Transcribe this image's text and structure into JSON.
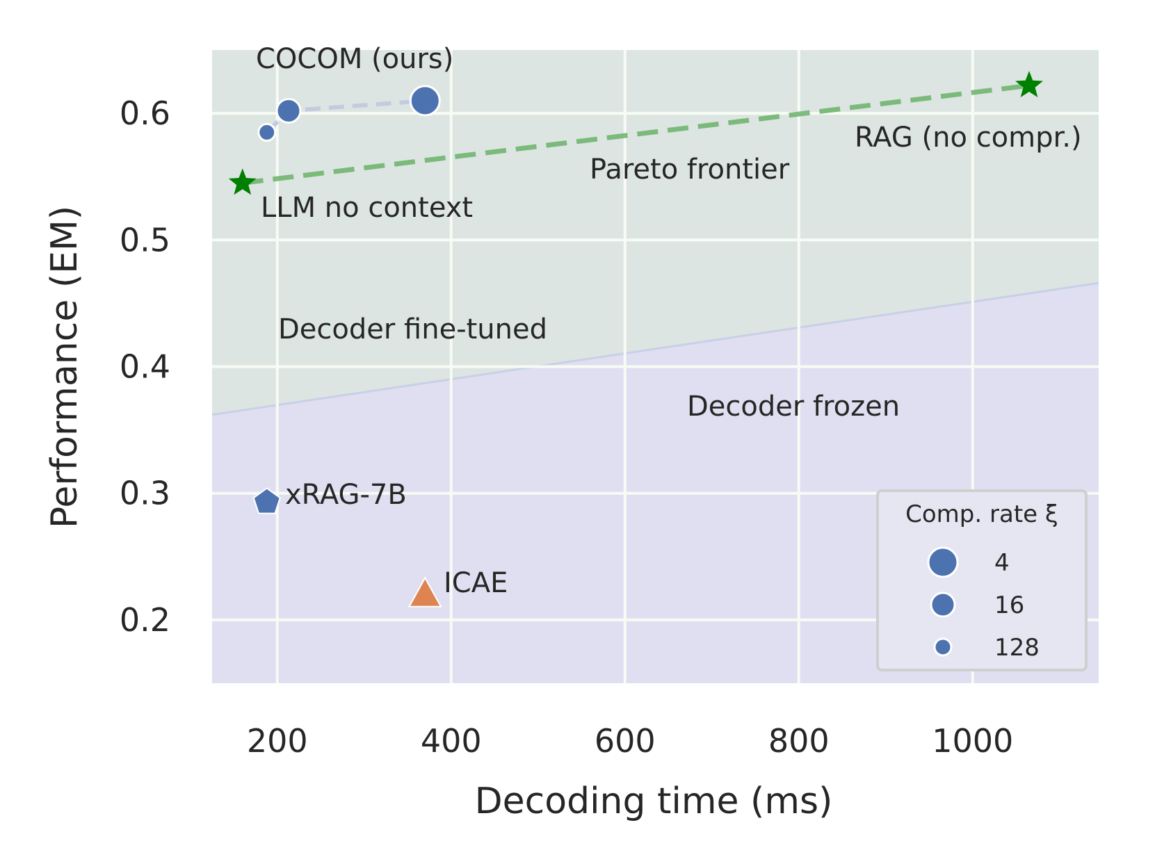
{
  "chart_data": {
    "type": "scatter",
    "title": "",
    "xlabel": "Decoding time (ms)",
    "ylabel": "Performance (EM)",
    "xlim": [
      125,
      1145
    ],
    "ylim": [
      0.15,
      0.65
    ],
    "x_ticks": [
      "200",
      "400",
      "600",
      "800",
      "1000"
    ],
    "y_ticks": [
      "0.2",
      "0.3",
      "0.4",
      "0.5",
      "0.6"
    ],
    "grid": true,
    "regions": [
      {
        "name": "Decoder fine-tuned",
        "color": "#dde5e3",
        "label_color": "#6ab36a"
      },
      {
        "name": "Decoder frozen",
        "color": "#dfdff1",
        "label_color": "#8080ea"
      }
    ],
    "region_boundary": {
      "x": [
        125,
        1145
      ],
      "y": [
        0.362,
        0.466
      ]
    },
    "series": [
      {
        "name": "COCOM (ours)",
        "marker": "circle",
        "color": "#4c72b0",
        "points": [
          {
            "x": 188,
            "y": 0.585,
            "rate": 128
          },
          {
            "x": 213,
            "y": 0.602,
            "rate": 16
          },
          {
            "x": 370,
            "y": 0.61,
            "rate": 4
          }
        ]
      },
      {
        "name": "xRAG-7B",
        "marker": "pentagon",
        "color": "#4c72b0",
        "points": [
          {
            "x": 188,
            "y": 0.293
          }
        ]
      },
      {
        "name": "ICAE",
        "marker": "triangle",
        "color": "#dd8452",
        "points": [
          {
            "x": 370,
            "y": 0.22
          }
        ]
      },
      {
        "name": "LLM no context",
        "marker": "star",
        "color": "#008000",
        "points": [
          {
            "x": 160,
            "y": 0.545
          }
        ]
      },
      {
        "name": "RAG (no compr.)",
        "marker": "star",
        "color": "#008000",
        "points": [
          {
            "x": 1065,
            "y": 0.622
          }
        ]
      }
    ],
    "pareto_frontier": {
      "label": "Pareto frontier",
      "color": "#6ab36a",
      "x": [
        160,
        1065
      ],
      "y": [
        0.545,
        0.622
      ]
    },
    "legend": {
      "title": "Comp. rate ξ",
      "position": "bottom-right",
      "entries": [
        {
          "label": "4",
          "rate": 4
        },
        {
          "label": "16",
          "rate": 16
        },
        {
          "label": "128",
          "rate": 128
        }
      ]
    }
  }
}
